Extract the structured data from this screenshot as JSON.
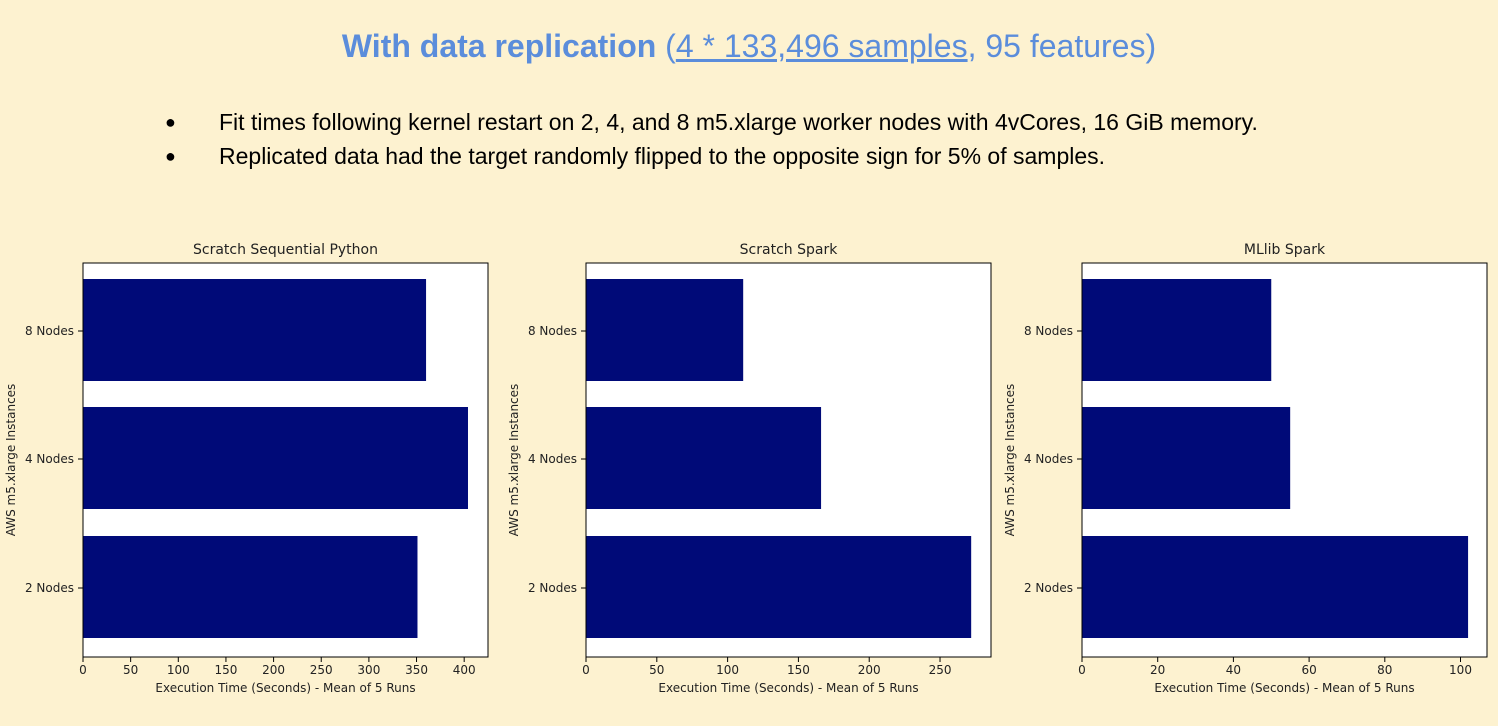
{
  "header": {
    "title_bold": "With data replication",
    "title_open": " (",
    "title_link": "4 * 133,496 samples",
    "title_rest": ", 95 features)"
  },
  "bullets": [
    {
      "marker": "●",
      "text": "Fit times following kernel restart on 2, 4, and 8 m5.xlarge worker nodes with 4vCores, 16 GiB memory."
    },
    {
      "marker": "●",
      "text": "Replicated data had the target randomly flipped to the opposite sign for 5% of samples."
    }
  ],
  "colors": {
    "background": "#fdf2d0",
    "title": "#5b8ddb",
    "bar": "#000a78"
  },
  "chart_data": [
    {
      "type": "bar",
      "orientation": "horizontal",
      "title": "Scratch Sequential Python",
      "xlabel": "Execution Time (Seconds) - Mean of 5 Runs",
      "ylabel": "AWS m5.xlarge Instances",
      "categories": [
        "2 Nodes",
        "4 Nodes",
        "8 Nodes"
      ],
      "values": [
        351,
        404,
        360
      ],
      "xlim": [
        0,
        425
      ],
      "xticks": [
        0,
        50,
        100,
        150,
        200,
        250,
        300,
        350,
        400
      ]
    },
    {
      "type": "bar",
      "orientation": "horizontal",
      "title": "Scratch Spark",
      "xlabel": "Execution Time (Seconds) - Mean of 5 Runs",
      "ylabel": "AWS m5.xlarge Instances",
      "categories": [
        "2 Nodes",
        "4 Nodes",
        "8 Nodes"
      ],
      "values": [
        272,
        166,
        111
      ],
      "xlim": [
        0,
        286
      ],
      "xticks": [
        0,
        50,
        100,
        150,
        200,
        250
      ]
    },
    {
      "type": "bar",
      "orientation": "horizontal",
      "title": "MLlib Spark",
      "xlabel": "Execution Time (Seconds) - Mean of 5 Runs",
      "ylabel": "AWS m5.xlarge Instances",
      "categories": [
        "2 Nodes",
        "4 Nodes",
        "8 Nodes"
      ],
      "values": [
        102,
        55,
        50
      ],
      "xlim": [
        0,
        107
      ],
      "xticks": [
        0,
        20,
        40,
        60,
        80,
        100
      ]
    }
  ]
}
